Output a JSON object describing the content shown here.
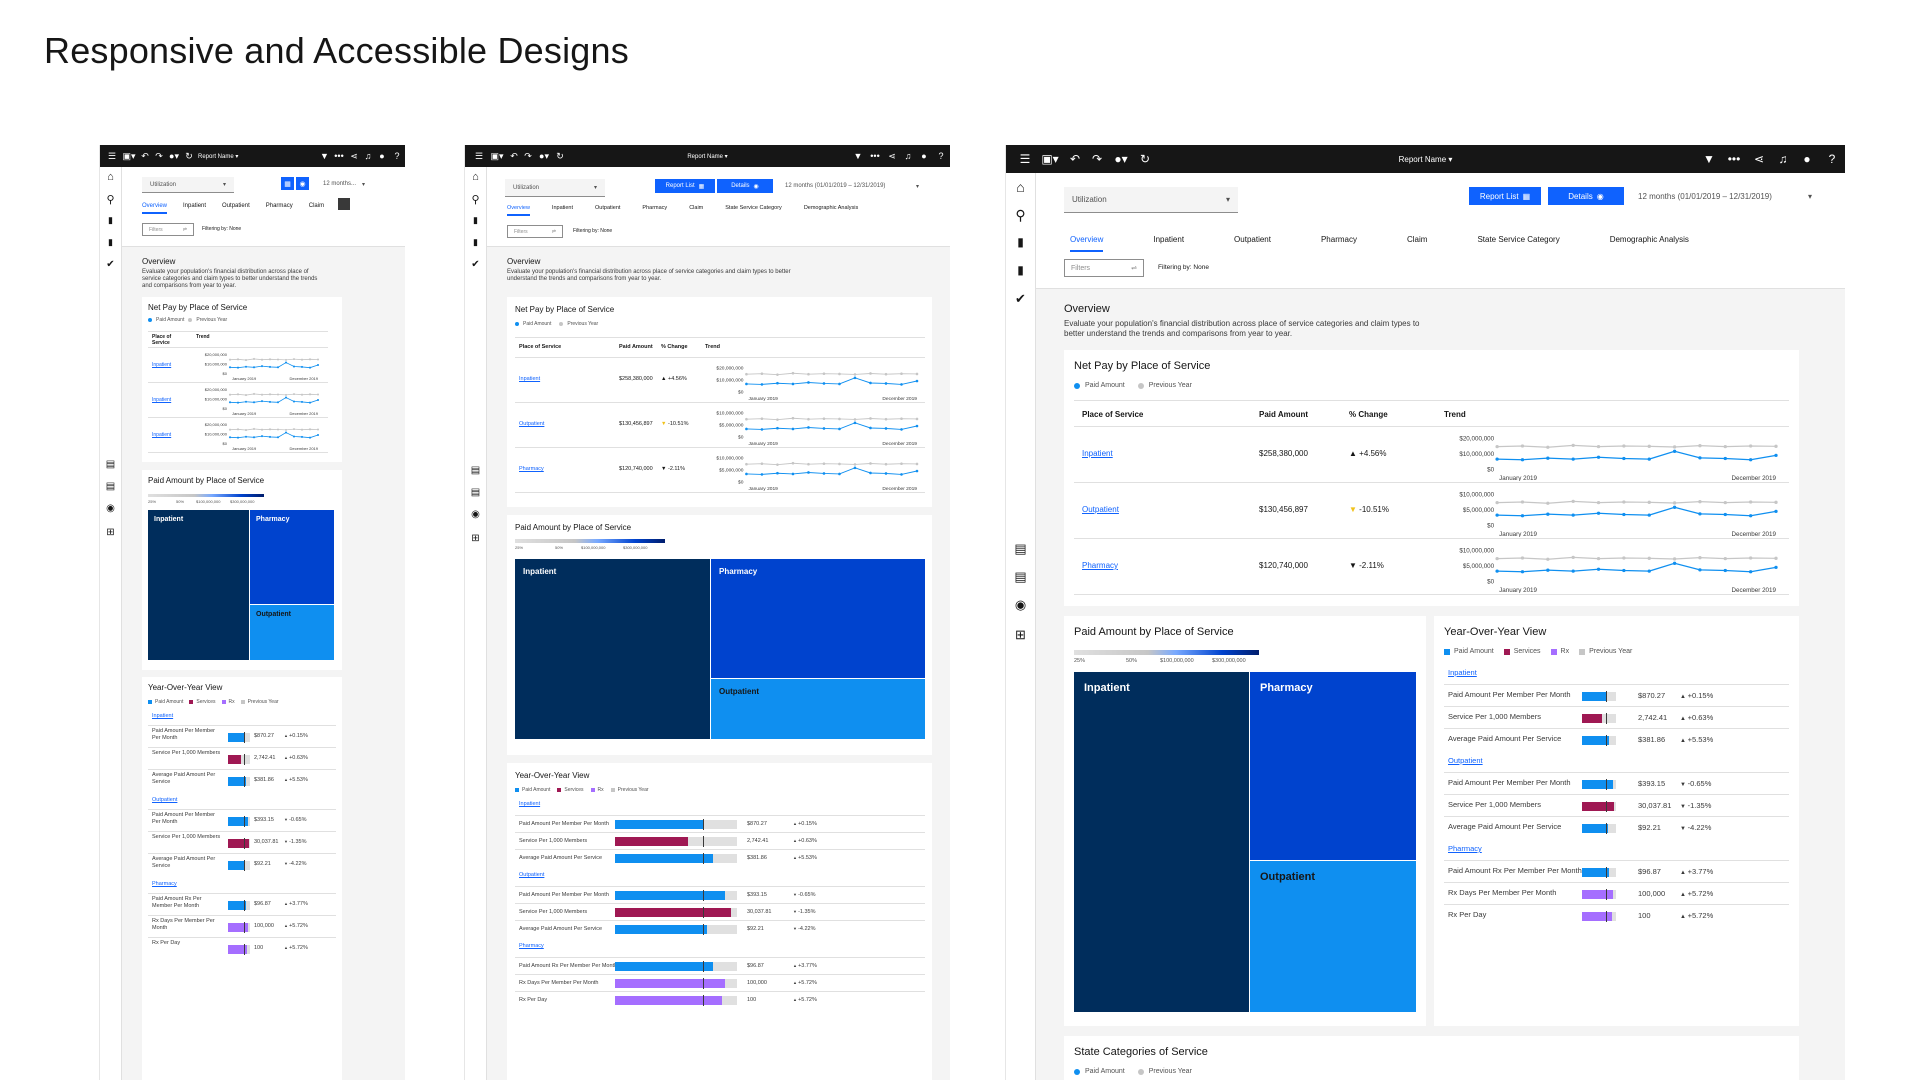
{
  "page_title": "Responsive and Accessible Designs",
  "toolbar": {
    "report_name": "Report Name",
    "report_list_label": "Report List",
    "details_label": "Details",
    "date_range_short": "12 months...",
    "date_range_full": "12 months (01/01/2019 – 12/31/2019)"
  },
  "filters": {
    "utilization": "Utilization",
    "filters_placeholder": "Filters",
    "filtering_by": "Filtering by: None"
  },
  "tabs": [
    "Overview",
    "Inpatient",
    "Outpatient",
    "Pharmacy",
    "Claim",
    "State Service Category",
    "Demographic Analysis"
  ],
  "overview": {
    "title": "Overview",
    "description": "Evaluate your population's financial distribution across place of service categories and claim types to better understand the trends and comparisons from year to year."
  },
  "net_pay": {
    "title": "Net Pay by Place of Service",
    "legend_paid": "Paid Amount",
    "legend_prev": "Previous Year",
    "columns": [
      "Place of Service",
      "Paid Amount",
      "% Change",
      "Trend"
    ],
    "rows": [
      {
        "name": "Inpatient",
        "paid": "$258,380,000",
        "change": "+4.56%",
        "dir": "up",
        "y_top": "$20,000,000",
        "y_mid": "$10,000,000"
      },
      {
        "name": "Outpatient",
        "paid": "$130,456,897",
        "change": "-10.51%",
        "dir": "down-warn",
        "y_top": "$10,000,000",
        "y_mid": "$5,000,000"
      },
      {
        "name": "Pharmacy",
        "paid": "$120,740,000",
        "change": "-2.11%",
        "dir": "down",
        "y_top": "$10,000,000",
        "y_mid": "$5,000,000"
      }
    ],
    "y_zero": "$0",
    "x_start": "January 2019",
    "x_end": "December 2019",
    "current": [
      0.3,
      0.28,
      0.33,
      0.3,
      0.36,
      0.32,
      0.3,
      0.55,
      0.34,
      0.32,
      0.28,
      0.42
    ],
    "previous": [
      0.7,
      0.72,
      0.68,
      0.74,
      0.7,
      0.72,
      0.71,
      0.69,
      0.73,
      0.7,
      0.72,
      0.71
    ]
  },
  "paid_amount": {
    "title": "Paid Amount by Place of Service",
    "scale_labels": [
      "25%",
      "50%",
      "$100,000,000",
      "$300,000,000"
    ],
    "tiles": [
      "Inpatient",
      "Pharmacy",
      "Outpatient"
    ],
    "colors": {
      "inpatient": "#002d5c",
      "pharmacy": "#0043ce",
      "outpatient": "#0f8ff0"
    }
  },
  "yoy": {
    "title": "Year-Over-Year View",
    "legend": [
      "Paid Amount",
      "Services",
      "Rx",
      "Previous Year"
    ],
    "legend_colors": [
      "#0f8ff0",
      "#9f1853",
      "#a56eff",
      "#c6c6c6"
    ],
    "groups": [
      {
        "name": "Inpatient",
        "items": [
          {
            "label": "Paid Amount Per Member Per Month",
            "value": "$870.27",
            "change": "+0.15%",
            "dir": "up",
            "color": "#0f8ff0",
            "fill": 0.72
          },
          {
            "label": "Service Per 1,000 Members",
            "value": "2,742.41",
            "change": "+0.63%",
            "dir": "up",
            "color": "#9f1853",
            "fill": 0.6
          },
          {
            "label": "Average Paid Amount Per Service",
            "value": "$381.86",
            "change": "+5.53%",
            "dir": "up",
            "color": "#0f8ff0",
            "fill": 0.8
          }
        ]
      },
      {
        "name": "Outpatient",
        "items": [
          {
            "label": "Paid Amount Per Member Per Month",
            "value": "$393.15",
            "change": "-0.65%",
            "dir": "down",
            "color": "#0f8ff0",
            "fill": 0.9
          },
          {
            "label": "Service Per 1,000 Members",
            "value": "30,037.81",
            "change": "-1.35%",
            "dir": "down",
            "color": "#9f1853",
            "fill": 0.95
          },
          {
            "label": "Average Paid Amount Per Service",
            "value": "$92.21",
            "change": "-4.22%",
            "dir": "down",
            "color": "#0f8ff0",
            "fill": 0.75
          }
        ]
      },
      {
        "name": "Pharmacy",
        "items": [
          {
            "label": "Paid Amount Rx Per Member Per Month",
            "value": "$96.87",
            "change": "+3.77%",
            "dir": "up",
            "color": "#0f8ff0",
            "fill": 0.8
          },
          {
            "label": "Rx Days Per Member Per Month",
            "value": "100,000",
            "change": "+5.72%",
            "dir": "up",
            "color": "#a56eff",
            "fill": 0.9
          },
          {
            "label": "Rx Per Day",
            "value": "100",
            "change": "+5.72%",
            "dir": "up",
            "color": "#a56eff",
            "fill": 0.88
          }
        ]
      }
    ]
  },
  "state_categories": {
    "title": "State Categories of Service",
    "legend_paid": "Paid Amount",
    "legend_prev": "Previous Year"
  },
  "icons": [
    "menu-icon",
    "save-icon",
    "undo-icon",
    "redo-icon",
    "play-icon",
    "refresh-icon",
    "filter-icon",
    "overflow-icon",
    "share-icon",
    "notification-icon",
    "user-icon",
    "help-icon",
    "home-icon",
    "search-icon",
    "folder-icon",
    "folder-shared-icon",
    "checkmark-icon",
    "table-icon",
    "table-alt-icon",
    "user-avatar-icon",
    "add-icon"
  ]
}
